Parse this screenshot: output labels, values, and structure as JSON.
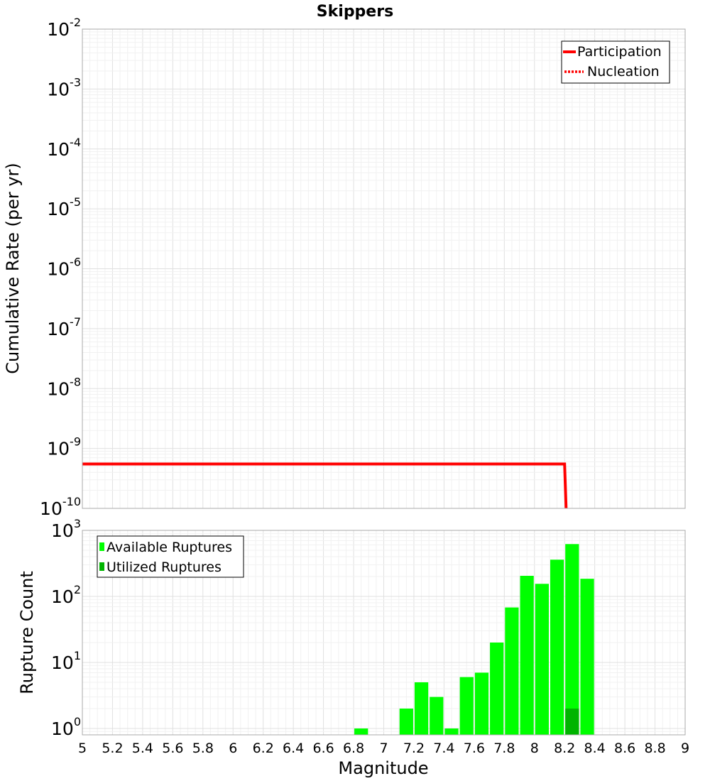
{
  "chart_data": [
    {
      "type": "line",
      "title": "Skippers",
      "xlabel": "",
      "ylabel": "Cumulative Rate (per yr)",
      "xlim": [
        5,
        9
      ],
      "ylim": [
        1e-10,
        0.01
      ],
      "yscale": "log",
      "grid": true,
      "legend_position": "top-right",
      "y_ticks": [
        {
          "base": "10",
          "exp": "-10"
        },
        {
          "base": "10",
          "exp": "-9"
        },
        {
          "base": "10",
          "exp": "-8"
        },
        {
          "base": "10",
          "exp": "-7"
        },
        {
          "base": "10",
          "exp": "-6"
        },
        {
          "base": "10",
          "exp": "-5"
        },
        {
          "base": "10",
          "exp": "-4"
        },
        {
          "base": "10",
          "exp": "-3"
        },
        {
          "base": "10",
          "exp": "-2"
        }
      ],
      "series": [
        {
          "name": "Participation",
          "style": "solid",
          "color": "#ff0000",
          "x": [
            5.0,
            8.2,
            8.21
          ],
          "y": [
            5.5e-10,
            5.5e-10,
            1e-10
          ]
        },
        {
          "name": "Nucleation",
          "style": "dotted",
          "color": "#ff0000",
          "x": [],
          "y": []
        }
      ]
    },
    {
      "type": "bar",
      "title": "",
      "xlabel": "Magnitude",
      "ylabel": "Rupture Count",
      "xlim": [
        5,
        9
      ],
      "ylim": [
        0.8,
        1000
      ],
      "yscale": "log",
      "grid": true,
      "legend_position": "top-left",
      "bar_width": 0.1,
      "x_ticks": [
        "5",
        "5.2",
        "5.4",
        "5.6",
        "5.8",
        "6",
        "6.2",
        "6.4",
        "6.6",
        "6.8",
        "7",
        "7.2",
        "7.4",
        "7.6",
        "7.8",
        "8",
        "8.2",
        "8.4",
        "8.6",
        "8.8",
        "9"
      ],
      "y_ticks": [
        {
          "base": "10",
          "exp": "0"
        },
        {
          "base": "10",
          "exp": "1"
        },
        {
          "base": "10",
          "exp": "2"
        },
        {
          "base": "10",
          "exp": "3"
        }
      ],
      "series": [
        {
          "name": "Available Ruptures",
          "color": "#00ff00",
          "x": [
            6.85,
            7.15,
            7.25,
            7.35,
            7.45,
            7.55,
            7.65,
            7.75,
            7.85,
            7.95,
            8.05,
            8.15,
            8.25,
            8.35
          ],
          "values": [
            1,
            2,
            5,
            3,
            1,
            6,
            7,
            20,
            68,
            205,
            155,
            360,
            620,
            185
          ]
        },
        {
          "name": "Utilized Ruptures",
          "color": "#00b400",
          "x": [
            8.25
          ],
          "values": [
            2
          ]
        }
      ]
    }
  ]
}
